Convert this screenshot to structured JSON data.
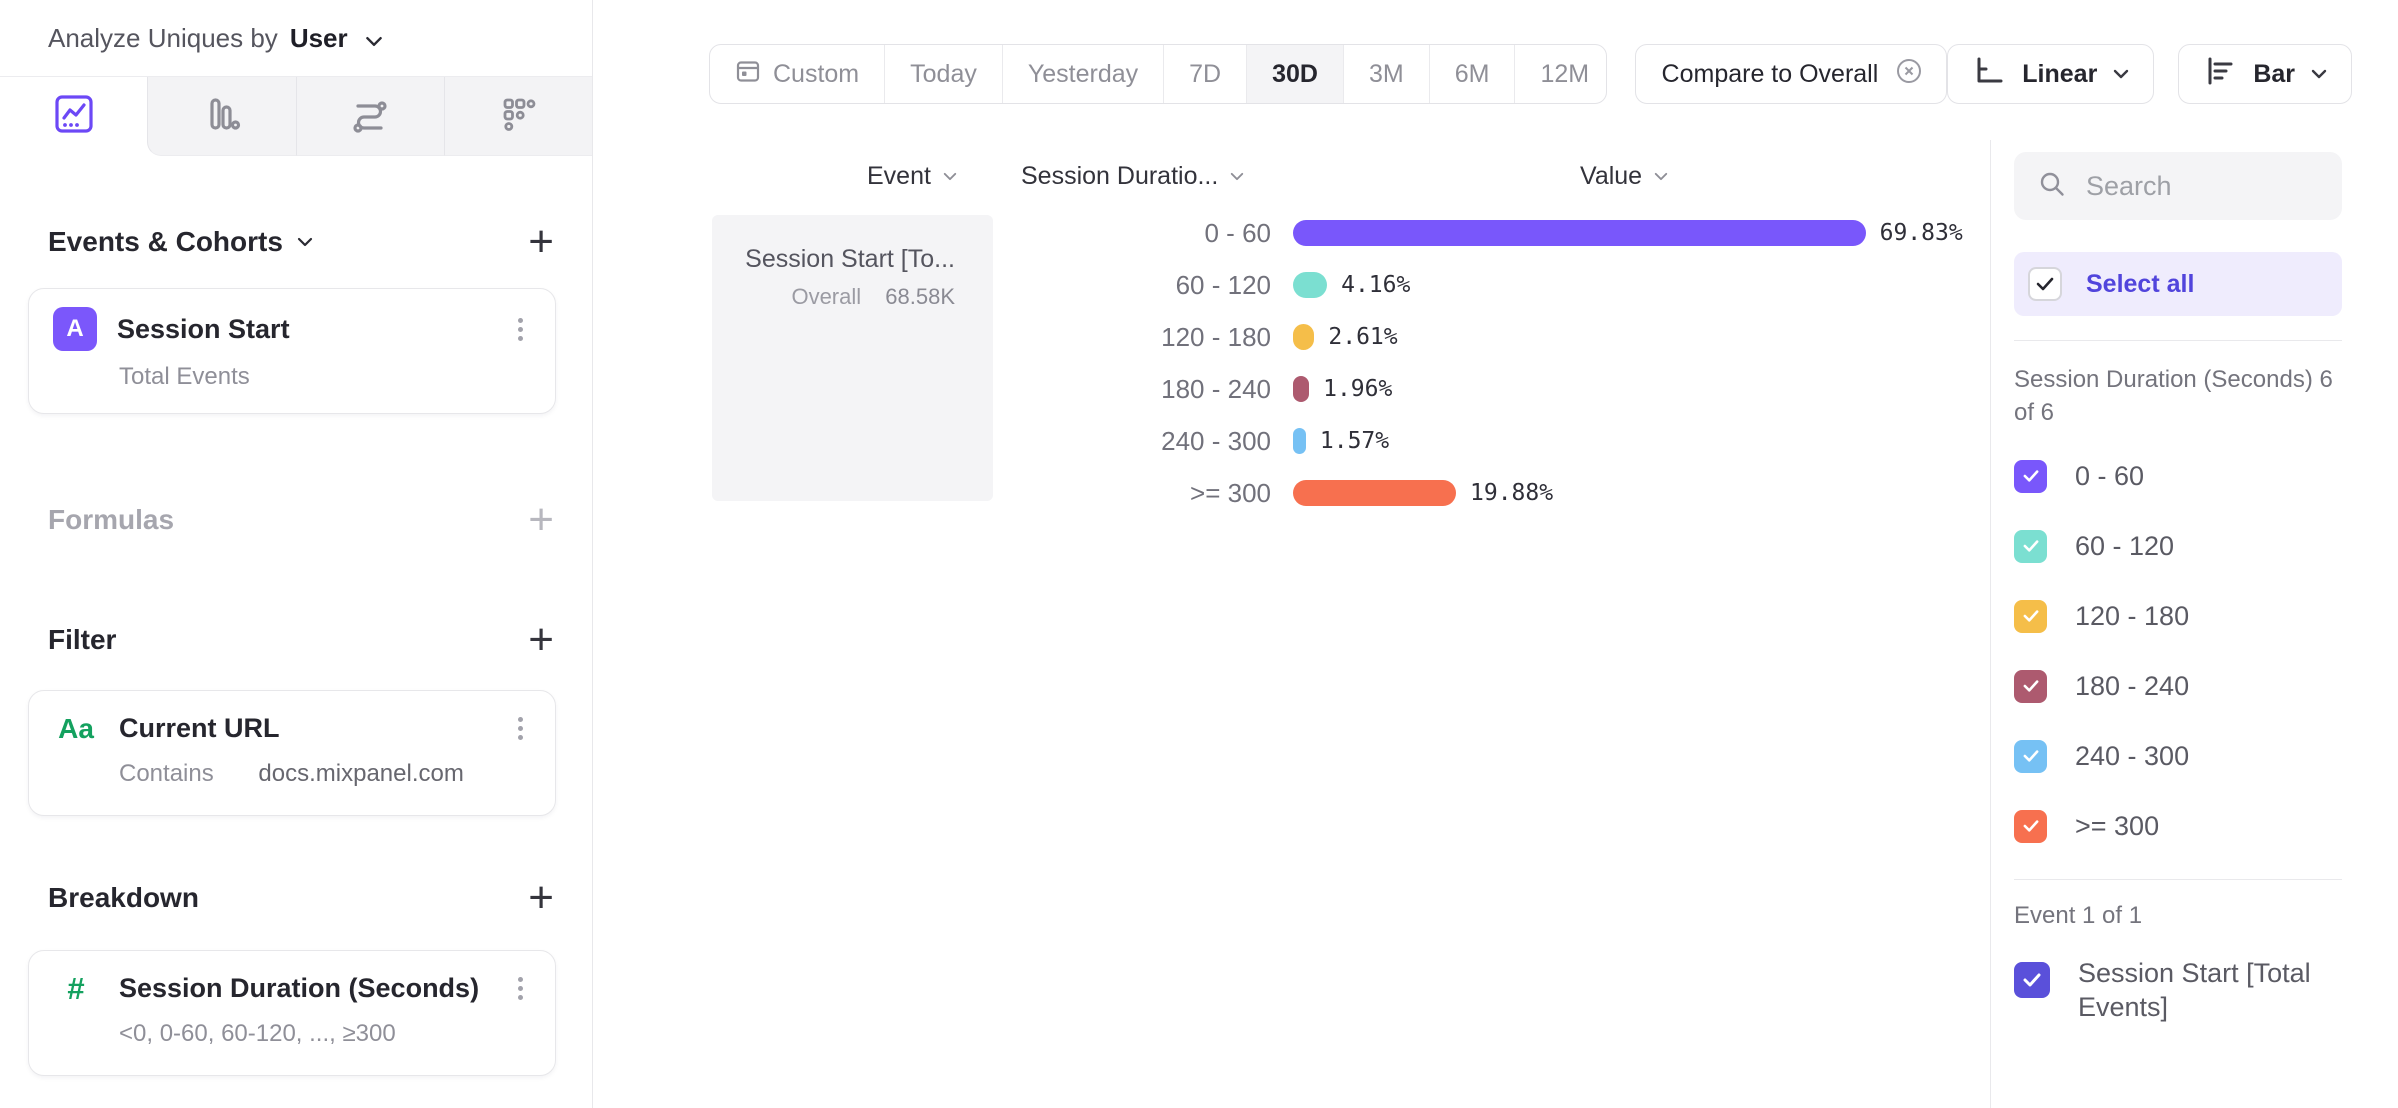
{
  "topbar": {
    "analyze_prefix": "Analyze Uniques by",
    "analyze_value": "User"
  },
  "sidebar": {
    "tabs": [
      "insights-tab",
      "funnels-tab",
      "flows-tab",
      "retention-tab"
    ],
    "selected_tab": "insights-tab",
    "events_section": {
      "title": "Events & Cohorts",
      "add_label": "+",
      "card": {
        "badge": "A",
        "title": "Session Start",
        "subtitle": "Total Events"
      }
    },
    "formulas_section": {
      "title": "Formulas",
      "add_label": "+"
    },
    "filter_section": {
      "title": "Filter",
      "add_label": "+",
      "card": {
        "badge": "Aa",
        "title": "Current URL",
        "operator": "Contains",
        "value": "docs.mixpanel.com"
      }
    },
    "breakdown_section": {
      "title": "Breakdown",
      "add_label": "+",
      "card": {
        "badge": "#",
        "title": "Session Duration (Seconds)",
        "subtitle": "<0, 0-60, 60-120, ..., ≥300"
      }
    }
  },
  "toolbar": {
    "date_ranges": [
      "Custom",
      "Today",
      "Yesterday",
      "7D",
      "30D",
      "3M",
      "6M",
      "12M"
    ],
    "active_range": "30D",
    "compare_label": "Compare to Overall",
    "scale_label": "Linear",
    "chart_type_label": "Bar"
  },
  "chart_data": {
    "type": "bar",
    "orientation": "horizontal",
    "columns": [
      "Event",
      "Session Duratio...",
      "Value"
    ],
    "event": {
      "name": "Session Start [To...",
      "overall_label": "Overall",
      "overall_value": "68.58K"
    },
    "categories": [
      "0 - 60",
      "60 - 120",
      "120 - 180",
      "180 - 240",
      "240 - 300",
      ">= 300"
    ],
    "values": [
      69.83,
      4.16,
      2.61,
      1.96,
      1.57,
      19.88
    ],
    "value_labels": [
      "69.83%",
      "4.16%",
      "2.61%",
      "1.96%",
      "1.57%",
      "19.88%"
    ],
    "colors": [
      "#7957FB",
      "#7BDFD1",
      "#F5BE49",
      "#AD5A6F",
      "#76C1F4",
      "#F7704F"
    ],
    "value_format": "percent",
    "xlim": [
      0,
      100
    ],
    "grid": false,
    "legend_position": "right"
  },
  "legend_panel": {
    "search_placeholder": "Search",
    "select_all_label": "Select all",
    "group1_label": "Session Duration (Seconds) 6 of 6",
    "items": [
      {
        "label": "0 - 60",
        "color": "#7957FB",
        "checked": true
      },
      {
        "label": "60 - 120",
        "color": "#7BDFD1",
        "checked": true
      },
      {
        "label": "120 - 180",
        "color": "#F5BE49",
        "checked": true
      },
      {
        "label": "180 - 240",
        "color": "#AD5A6F",
        "checked": true
      },
      {
        "label": "240 - 300",
        "color": "#76C1F4",
        "checked": true
      },
      {
        "label": ">= 300",
        "color": "#F7704F",
        "checked": true
      }
    ],
    "group2_label": "Event 1 of 1",
    "event_item": {
      "label": "Session Start [Total Events]",
      "color": "#5A50DA",
      "checked": true
    }
  }
}
